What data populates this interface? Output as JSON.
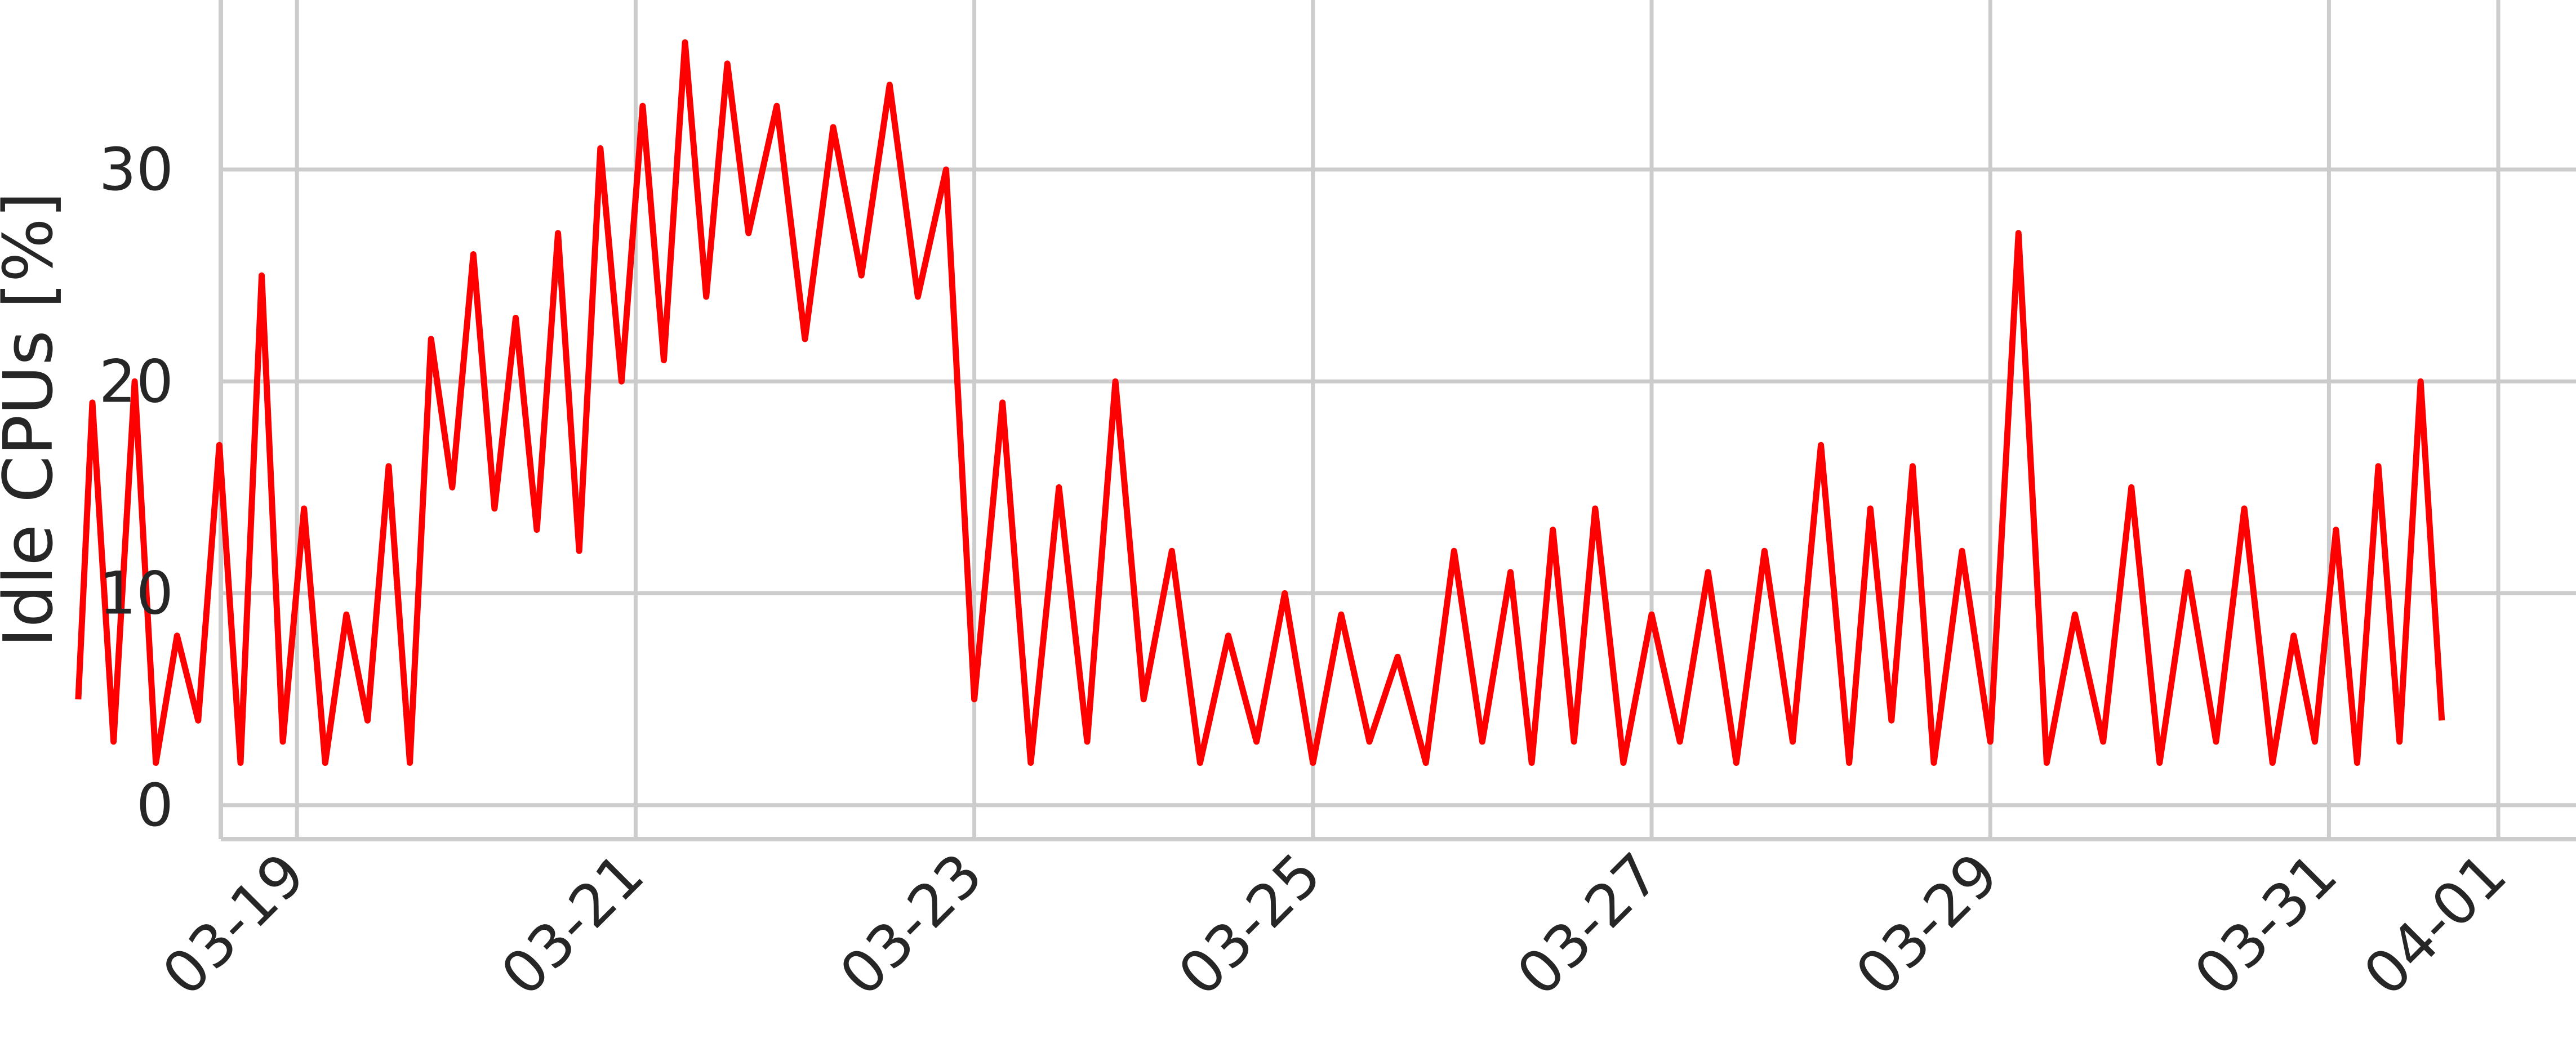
{
  "chart_data": {
    "type": "line",
    "title": "",
    "xlabel": "",
    "ylabel": "Idle CPUs [%]",
    "x_tick_labels": [
      "03-19",
      "03-21",
      "03-23",
      "03-25",
      "03-27",
      "03-29",
      "03-31",
      "04-01"
    ],
    "y_tick_labels": [
      "0",
      "10",
      "20",
      "30"
    ],
    "y_ticks": [
      0,
      10,
      20,
      30
    ],
    "xlim": [
      "2024-03-17T00:00",
      "2024-04-01T00:00"
    ],
    "ylim": [
      -1.6,
      38.0
    ],
    "grid": true,
    "legend": "none",
    "series": [
      {
        "color": "#ff0000",
        "x": [
          "2024-03-17T17:00",
          "2024-03-17T19:00",
          "2024-03-17T22:00",
          "2024-03-18T01:00",
          "2024-03-18T04:00",
          "2024-03-18T07:00",
          "2024-03-18T10:00",
          "2024-03-18T13:00",
          "2024-03-18T16:00",
          "2024-03-18T19:00",
          "2024-03-18T22:00",
          "2024-03-19T01:00",
          "2024-03-19T04:00",
          "2024-03-19T07:00",
          "2024-03-19T10:00",
          "2024-03-19T13:00",
          "2024-03-19T16:00",
          "2024-03-19T19:00",
          "2024-03-19T22:00",
          "2024-03-20T01:00",
          "2024-03-20T04:00",
          "2024-03-20T07:00",
          "2024-03-20T10:00",
          "2024-03-20T13:00",
          "2024-03-20T16:00",
          "2024-03-20T19:00",
          "2024-03-20T22:00",
          "2024-03-21T01:00",
          "2024-03-21T04:00",
          "2024-03-21T07:00",
          "2024-03-21T10:00",
          "2024-03-21T13:00",
          "2024-03-21T16:00",
          "2024-03-21T20:00",
          "2024-03-22T00:00",
          "2024-03-22T04:00",
          "2024-03-22T08:00",
          "2024-03-22T12:00",
          "2024-03-22T16:00",
          "2024-03-22T20:00",
          "2024-03-23T00:00",
          "2024-03-23T04:00",
          "2024-03-23T08:00",
          "2024-03-23T12:00",
          "2024-03-23T16:00",
          "2024-03-23T20:00",
          "2024-03-24T00:00",
          "2024-03-24T04:00",
          "2024-03-24T08:00",
          "2024-03-24T12:00",
          "2024-03-24T16:00",
          "2024-03-24T20:00",
          "2024-03-25T00:00",
          "2024-03-25T04:00",
          "2024-03-25T08:00",
          "2024-03-25T12:00",
          "2024-03-25T16:00",
          "2024-03-25T20:00",
          "2024-03-26T00:00",
          "2024-03-26T04:00",
          "2024-03-26T07:00",
          "2024-03-26T10:00",
          "2024-03-26T13:00",
          "2024-03-26T16:00",
          "2024-03-26T20:00",
          "2024-03-27T00:00",
          "2024-03-27T04:00",
          "2024-03-27T08:00",
          "2024-03-27T12:00",
          "2024-03-27T16:00",
          "2024-03-27T20:00",
          "2024-03-28T00:00",
          "2024-03-28T04:00",
          "2024-03-28T07:00",
          "2024-03-28T10:00",
          "2024-03-28T13:00",
          "2024-03-28T16:00",
          "2024-03-28T20:00",
          "2024-03-29T00:00",
          "2024-03-29T04:00",
          "2024-03-29T08:00",
          "2024-03-29T12:00",
          "2024-03-29T16:00",
          "2024-03-29T20:00",
          "2024-03-30T00:00",
          "2024-03-30T04:00",
          "2024-03-30T08:00",
          "2024-03-30T12:00",
          "2024-03-30T16:00",
          "2024-03-30T19:00",
          "2024-03-30T22:00",
          "2024-03-31T01:00",
          "2024-03-31T04:00",
          "2024-03-31T07:00",
          "2024-03-31T10:00",
          "2024-03-31T13:00",
          "2024-03-31T16:00"
        ],
        "y": [
          5,
          19,
          3,
          20,
          2,
          8,
          4,
          17,
          2,
          25,
          3,
          14,
          2,
          9,
          4,
          16,
          2,
          22,
          15,
          26,
          14,
          23,
          13,
          27,
          12,
          31,
          20,
          33,
          21,
          36,
          24,
          35,
          27,
          33,
          22,
          32,
          25,
          34,
          24,
          30,
          5,
          19,
          2,
          15,
          3,
          20,
          5,
          12,
          2,
          8,
          3,
          10,
          2,
          9,
          3,
          7,
          2,
          12,
          3,
          11,
          2,
          13,
          3,
          14,
          2,
          9,
          3,
          11,
          2,
          12,
          3,
          17,
          2,
          14,
          4,
          16,
          2,
          12,
          3,
          27,
          2,
          9,
          3,
          15,
          2,
          11,
          3,
          14,
          2,
          8,
          3,
          13,
          2,
          16,
          3,
          20,
          4
        ]
      }
    ]
  }
}
